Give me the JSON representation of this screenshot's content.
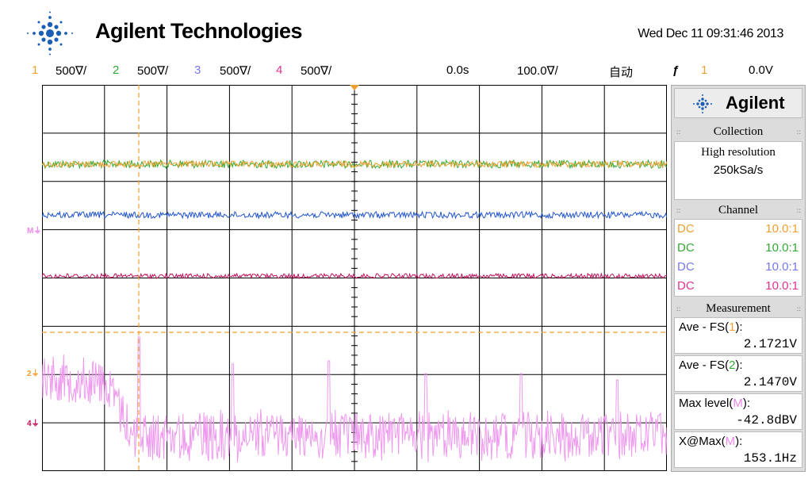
{
  "header": {
    "brand": "Agilent Technologies",
    "datetime": "Wed Dec 11 09:31:46 2013"
  },
  "status_bar": {
    "channels": [
      {
        "num": "1",
        "scale": "500∇/",
        "color": "#f0a030"
      },
      {
        "num": "2",
        "scale": "500∇/",
        "color": "#33aa33"
      },
      {
        "num": "3",
        "scale": "500∇/",
        "color": "#7777ee"
      },
      {
        "num": "4",
        "scale": "500∇/",
        "color": "#e0348f"
      }
    ],
    "time_delay": "0.0s",
    "time_scale": "100.0∇/",
    "trigger_mode": "自动",
    "trigger_source": "1",
    "trigger_level": "0.0V"
  },
  "panel": {
    "brand": "Agilent",
    "collection": {
      "title": "Collection",
      "mode": "High resolution",
      "rate": "250kSa/s"
    },
    "channel": {
      "title": "Channel",
      "rows": [
        {
          "coupling": "DC",
          "probe": "10.0:1",
          "color": "#f0a030"
        },
        {
          "coupling": "DC",
          "probe": "10.0:1",
          "color": "#33aa33"
        },
        {
          "coupling": "DC",
          "probe": "10.0:1",
          "color": "#7777ee"
        },
        {
          "coupling": "DC",
          "probe": "10.0:1",
          "color": "#e0348f"
        }
      ]
    },
    "measurement": {
      "title": "Measurement",
      "items": [
        {
          "label": "Ave - FS(",
          "src": "1",
          "suffix": "):",
          "value": "2.1721V",
          "src_color": "#f0a030"
        },
        {
          "label": "Ave - FS(",
          "src": "2",
          "suffix": "):",
          "value": "2.1470V",
          "src_color": "#33aa33"
        },
        {
          "label": "Max level(",
          "src": "M",
          "suffix": "):",
          "value": "-42.8dBV",
          "src_color": "#ee88ee"
        },
        {
          "label": "X@Max(",
          "src": "M",
          "suffix": "):",
          "value": "153.1Hz",
          "src_color": "#ee88ee"
        }
      ]
    }
  },
  "markers": {
    "math": "M",
    "ch2": "2",
    "ch4": "4"
  },
  "colors": {
    "grid": "#000000",
    "ch1": "#f0a030",
    "ch2": "#33aa33",
    "ch3": "#2255cc",
    "ch4": "#c0105a",
    "fft": "#ee99ee",
    "cursor": "#f0a030"
  }
}
